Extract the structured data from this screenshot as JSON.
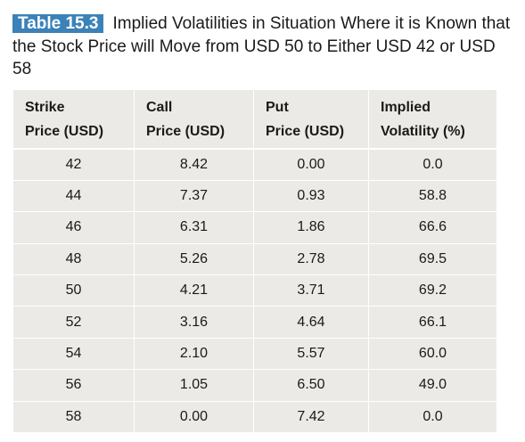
{
  "caption": {
    "label": "Table 15.3",
    "title": "Implied Volatilities in Situation Where it is Known that the Stock Price will Move from USD 50 to Either USD 42 or USD 58"
  },
  "table": {
    "headers": [
      [
        "Strike",
        "Price (USD)"
      ],
      [
        "Call",
        "Price (USD)"
      ],
      [
        "Put",
        "Price (USD)"
      ],
      [
        "Implied",
        "Volatility (%)"
      ]
    ],
    "rows": [
      [
        "42",
        "8.42",
        "0.00",
        "0.0"
      ],
      [
        "44",
        "7.37",
        "0.93",
        "58.8"
      ],
      [
        "46",
        "6.31",
        "1.86",
        "66.6"
      ],
      [
        "48",
        "5.26",
        "2.78",
        "69.5"
      ],
      [
        "50",
        "4.21",
        "3.71",
        "69.2"
      ],
      [
        "52",
        "3.16",
        "4.64",
        "66.1"
      ],
      [
        "54",
        "2.10",
        "5.57",
        "60.0"
      ],
      [
        "56",
        "1.05",
        "6.50",
        "49.0"
      ],
      [
        "58",
        "0.00",
        "7.42",
        "0.0"
      ]
    ]
  },
  "colors": {
    "label_bg": "#3b82b8",
    "table_bg": "#eceae6"
  }
}
